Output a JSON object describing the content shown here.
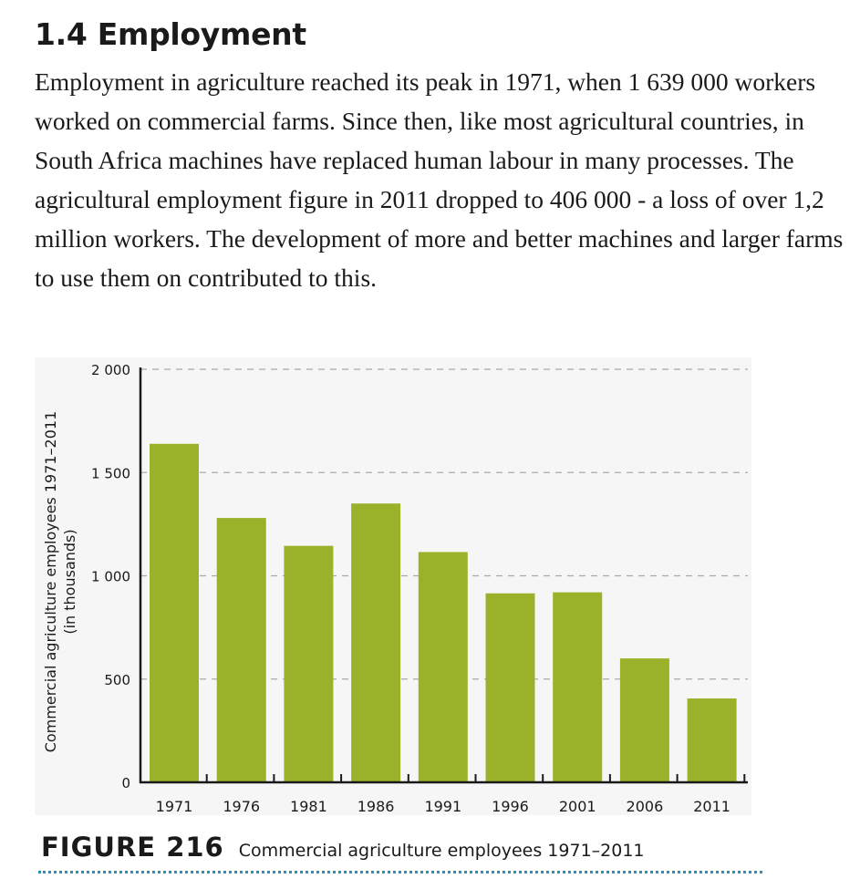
{
  "section": {
    "heading": "1.4 Employment",
    "paragraph": "Employment in agriculture reached its peak in 1971, when 1 639 000 workers worked on commercial farms. Since then, like most agricultural countries, in South Africa machines have replaced human labour in many processes. The agricultural employment figure in 2011 dropped to 406 000 - a loss of over 1,2 million workers. The development of more and better machines and larger farms to use them on contributed to this."
  },
  "figure": {
    "label": "FIGURE 216",
    "caption": "Commercial agriculture employees 1971–2011",
    "rule_color": "#2c8fb8"
  },
  "chart_data": {
    "type": "bar",
    "title": "",
    "xlabel": "",
    "ylabel_line1": "Commercial agriculture employees 1971–2011",
    "ylabel_line2": "(in thousands)",
    "categories": [
      "1971",
      "1976",
      "1981",
      "1986",
      "1991",
      "1996",
      "2001",
      "2006",
      "2011"
    ],
    "values": [
      1639,
      1280,
      1145,
      1350,
      1115,
      915,
      920,
      600,
      406
    ],
    "ylim": [
      0,
      2000
    ],
    "yticks": [
      0,
      500,
      1000,
      1500,
      2000
    ],
    "ytick_labels": [
      "0",
      "500",
      "1 000",
      "1 500",
      "2 000"
    ],
    "grid": "dashed horizontal",
    "legend": "none",
    "bar_color": "#9ab22a",
    "grid_color": "#aaaaaa",
    "axis_color": "#1a1a1a"
  }
}
